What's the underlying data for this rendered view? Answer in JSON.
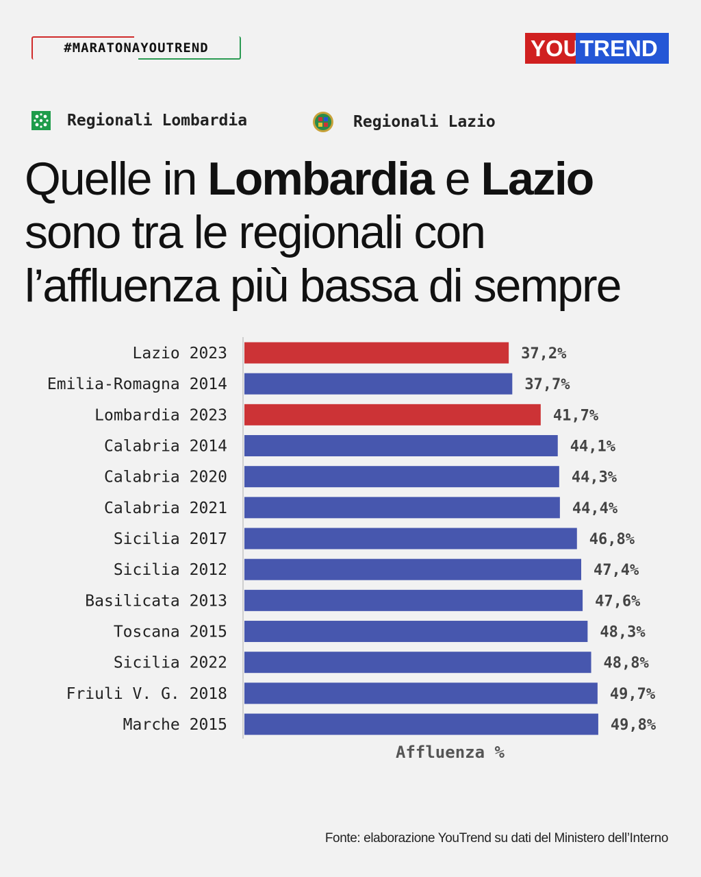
{
  "header": {
    "hashtag": "#MARATONAYOUTREND",
    "brand_you": "YOU",
    "brand_trend": "TREND"
  },
  "legend": [
    {
      "label": "Regionali Lombardia",
      "icon": "lombardia-rosa-camuna-icon",
      "color": "#1e9c4a"
    },
    {
      "label": "Regionali Lazio",
      "icon": "lazio-emblem-icon",
      "color": "#c8a23a"
    }
  ],
  "headline": {
    "l1_a": "Quelle in ",
    "l1_b": "Lombardia",
    "l1_c": " e ",
    "l1_d": "Lazio",
    "l2": "sono tra le regionali con",
    "l3": "l’affluenza più bassa di sempre"
  },
  "chart_data": {
    "type": "bar",
    "orientation": "horizontal",
    "categories": [
      "Lazio 2023",
      "Emilia-Romagna 2014",
      "Lombardia 2023",
      "Calabria 2014",
      "Calabria 2020",
      "Calabria 2021",
      "Sicilia 2017",
      "Sicilia 2012",
      "Basilicata 2013",
      "Toscana 2015",
      "Sicilia 2022",
      "Friuli V. G. 2018",
      "Marche 2015"
    ],
    "values": [
      37.2,
      37.7,
      41.7,
      44.1,
      44.3,
      44.4,
      46.8,
      47.4,
      47.6,
      48.3,
      48.8,
      49.7,
      49.8
    ],
    "value_labels": [
      "37,2%",
      "37,7%",
      "41,7%",
      "44,1%",
      "44,3%",
      "44,4%",
      "46,8%",
      "47,4%",
      "47,6%",
      "48,3%",
      "48,8%",
      "49,7%",
      "49,8%"
    ],
    "highlight": [
      true,
      false,
      true,
      false,
      false,
      false,
      false,
      false,
      false,
      false,
      false,
      false,
      false
    ],
    "colors": {
      "highlight": "#cc3336",
      "default": "#4757ae"
    },
    "xlabel": "Affluenza %",
    "xlim": [
      0,
      50
    ],
    "grid": false
  },
  "footer": {
    "source": "Fonte: elaborazione YouTrend su dati del Ministero dell’Interno"
  }
}
